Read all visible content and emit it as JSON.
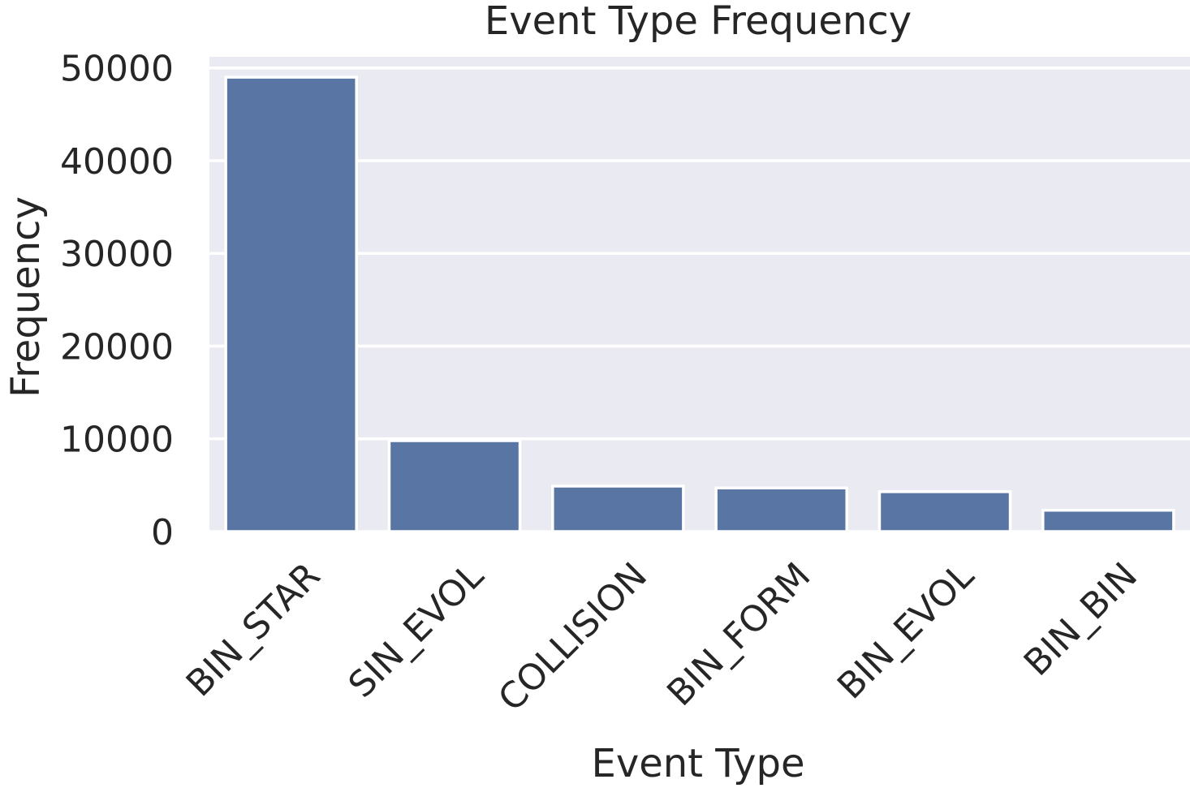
{
  "chart_data": {
    "type": "bar",
    "title": "Event Type Frequency",
    "xlabel": "Event Type",
    "ylabel": "Frequency",
    "categories": [
      "BIN_STAR",
      "SIN_EVOL",
      "COLLISION",
      "BIN_FORM",
      "BIN_EVOL",
      "BIN_BIN"
    ],
    "values": [
      49000,
      9800,
      4900,
      4700,
      4300,
      2300
    ],
    "yticks": [
      "0",
      "10000",
      "20000",
      "30000",
      "40000",
      "50000"
    ],
    "ylim": [
      0,
      51200
    ],
    "grid": true,
    "legend": "none",
    "colors": {
      "bar": "#5975a4",
      "plot_background": "#eaeaf2",
      "grid": "#ffffff",
      "text": "#262626"
    }
  }
}
